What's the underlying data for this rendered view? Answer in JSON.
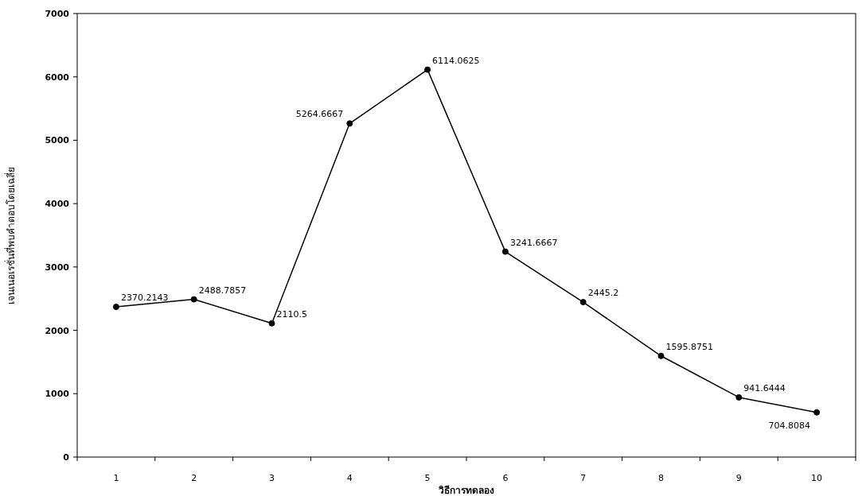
{
  "chart_data": {
    "type": "line",
    "xlabel": "วิธีการทดลอง",
    "ylabel": "เจนเนอเรชั่นที่พบคำตอบโดยเฉลี่ย",
    "categories": [
      "1",
      "2",
      "3",
      "4",
      "5",
      "6",
      "7",
      "8",
      "9",
      "10"
    ],
    "series": [
      {
        "color": "#000000",
        "values": [
          2370.2143,
          2488.7857,
          2110.5,
          5264.6667,
          6114.0625,
          3241.6667,
          2445.2,
          1595.8751,
          941.6444,
          704.8084
        ]
      }
    ],
    "ylim": [
      0,
      7000
    ],
    "yticks": [
      0,
      1000,
      2000,
      3000,
      4000,
      5000,
      6000,
      7000
    ],
    "data_labels": true,
    "marker": "circle",
    "line_style": "solid",
    "grid": false
  }
}
